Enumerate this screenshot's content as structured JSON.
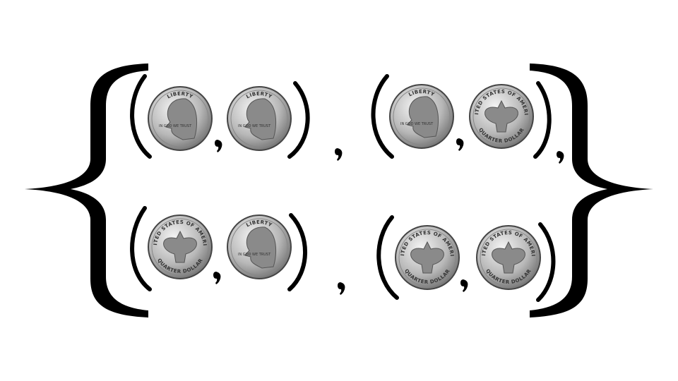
{
  "pairs": [
    [
      {
        "legend": "LIBERTY",
        "motto": "IN GOD WE TRUST"
      },
      {
        "legend": "LIBERTY",
        "motto": "IN GOD WE TRUST"
      }
    ],
    [
      {
        "legend": "LIBERTY",
        "motto": "IN GOD WE TRUST"
      },
      {
        "legend": "UNITED STATES OF AMERICA",
        "bottom": "QUARTER DOLLAR"
      }
    ],
    [
      {
        "legend": "UNITED STATES OF AMERICA",
        "bottom": "QUARTER DOLLAR"
      },
      {
        "legend": "LIBERTY",
        "motto": "IN GOD WE TRUST"
      }
    ],
    [
      {
        "legend": "UNITED STATES OF AMERICA",
        "bottom": "QUARTER DOLLAR"
      },
      {
        "legend": "UNITED STATES OF AMERICA",
        "bottom": "QUARTER DOLLAR"
      }
    ]
  ]
}
